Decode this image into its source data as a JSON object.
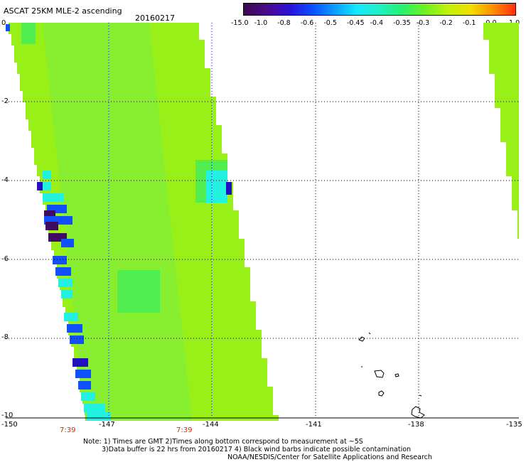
{
  "header": {
    "title": "ASCAT 25KM MLE-2 ascending",
    "date": "20160217"
  },
  "colorbar": {
    "tick_labels": [
      "-15.0",
      "-1.0",
      "-0.8",
      "-0.6",
      "-0.5",
      "-0.45",
      "-0.4",
      "-0.35",
      "-0.3",
      "-0.2",
      "-0.1",
      "0.0",
      "1.0"
    ],
    "colors": [
      "#3a0a52",
      "#4b0a8a",
      "#2a10d8",
      "#0a4cff",
      "#0a9cff",
      "#18e8ff",
      "#20f0c0",
      "#28f070",
      "#70f020",
      "#c0f010",
      "#f0e000",
      "#ff9000",
      "#ff3010"
    ]
  },
  "map": {
    "lat_labels": [
      "0",
      "-2",
      "-4",
      "-6",
      "-8",
      "-10"
    ],
    "lon_labels": [
      "-150",
      "-147",
      "-144",
      "-141",
      "-138",
      "-135"
    ],
    "time_labels": [
      "7:39",
      "7:39"
    ],
    "colors": {
      "swath_green": "#98f018",
      "swath_light": "#88ee30",
      "swath_mid": "#50ee50",
      "cyan": "#22f0e0",
      "blue": "#1050ff",
      "darkblue": "#2010c0",
      "purple": "#400a60",
      "grid": "#000000"
    }
  },
  "footer": {
    "note_line1": "Note: 1) Times are GMT 2)Times along bottom correspond to measurement at ~5S",
    "note_line2": "3)Data buffer is 22 hrs from 20160217 4) Black wind barbs indicate possible contamination",
    "note_line3": "NOAA/NESDIS/Center for Satellite Applications and Research"
  }
}
